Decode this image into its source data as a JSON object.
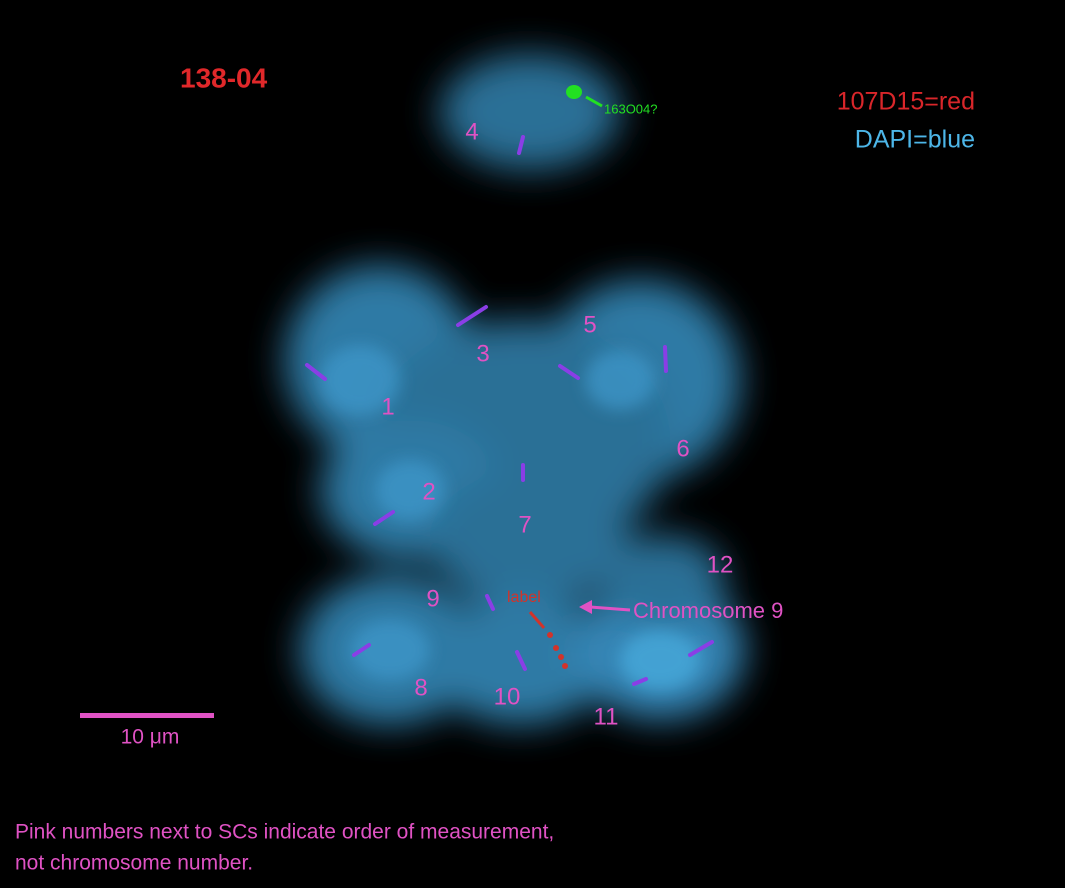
{
  "sample_id": "138-04",
  "legend": [
    "107D15=red",
    "DAPI=blue"
  ],
  "probe_label": "163O04?",
  "sc_numbers": [
    "1",
    "2",
    "3",
    "4",
    "5",
    "6",
    "7",
    "8",
    "9",
    "10",
    "11",
    "12"
  ],
  "probe_annotation": "label",
  "arrow_label": "Chromosome 9",
  "scale_bar": "10 μm",
  "caption": [
    "Pink numbers next to SCs indicate order of measurement,",
    "not chromosome number."
  ]
}
